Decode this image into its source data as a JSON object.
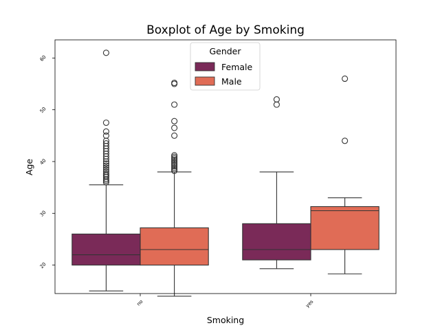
{
  "chart_data": {
    "type": "boxplot",
    "title": "Boxplot of Age by Smoking",
    "xlabel": "Smoking",
    "ylabel": "Age",
    "categories": [
      "no",
      "yes"
    ],
    "yticks": [
      20,
      30,
      40,
      50,
      60
    ],
    "ylim": [
      14.5,
      63.5
    ],
    "grid": false,
    "legend": {
      "title": "Gender",
      "placement": "top-center"
    },
    "series": [
      {
        "name": "Female",
        "color": "#7a2a58",
        "boxes": [
          {
            "whisker_low": 15.0,
            "q1": 20.0,
            "median": 22.0,
            "q3": 26.0,
            "whisker_high": 35.5,
            "outliers": [
              36.0,
              36.3,
              36.6,
              37.0,
              37.3,
              37.6,
              38.0,
              38.4,
              38.8,
              39.2,
              39.6,
              40.0,
              40.5,
              41.0,
              41.5,
              42.0,
              42.5,
              43.0,
              43.5,
              44.0,
              45.0,
              45.8,
              47.5,
              61.0
            ]
          },
          {
            "whisker_low": 19.3,
            "q1": 21.0,
            "median": 23.0,
            "q3": 28.0,
            "whisker_high": 38.0,
            "outliers": [
              51.0,
              52.0
            ]
          }
        ]
      },
      {
        "name": "Male",
        "color": "#e06c56",
        "boxes": [
          {
            "whisker_low": 14.0,
            "q1": 20.0,
            "median": 23.0,
            "q3": 27.2,
            "whisker_high": 38.0,
            "outliers": [
              38.2,
              38.5,
              38.8,
              39.1,
              39.4,
              39.7,
              40.0,
              40.3,
              40.6,
              40.9,
              41.2,
              45.0,
              46.5,
              47.8,
              51.0,
              55.0,
              55.2
            ]
          },
          {
            "whisker_low": 18.3,
            "q1": 23.0,
            "median": 30.5,
            "q3": 31.3,
            "whisker_high": 33.0,
            "outliers": [
              44.0,
              56.0
            ]
          }
        ]
      }
    ]
  }
}
